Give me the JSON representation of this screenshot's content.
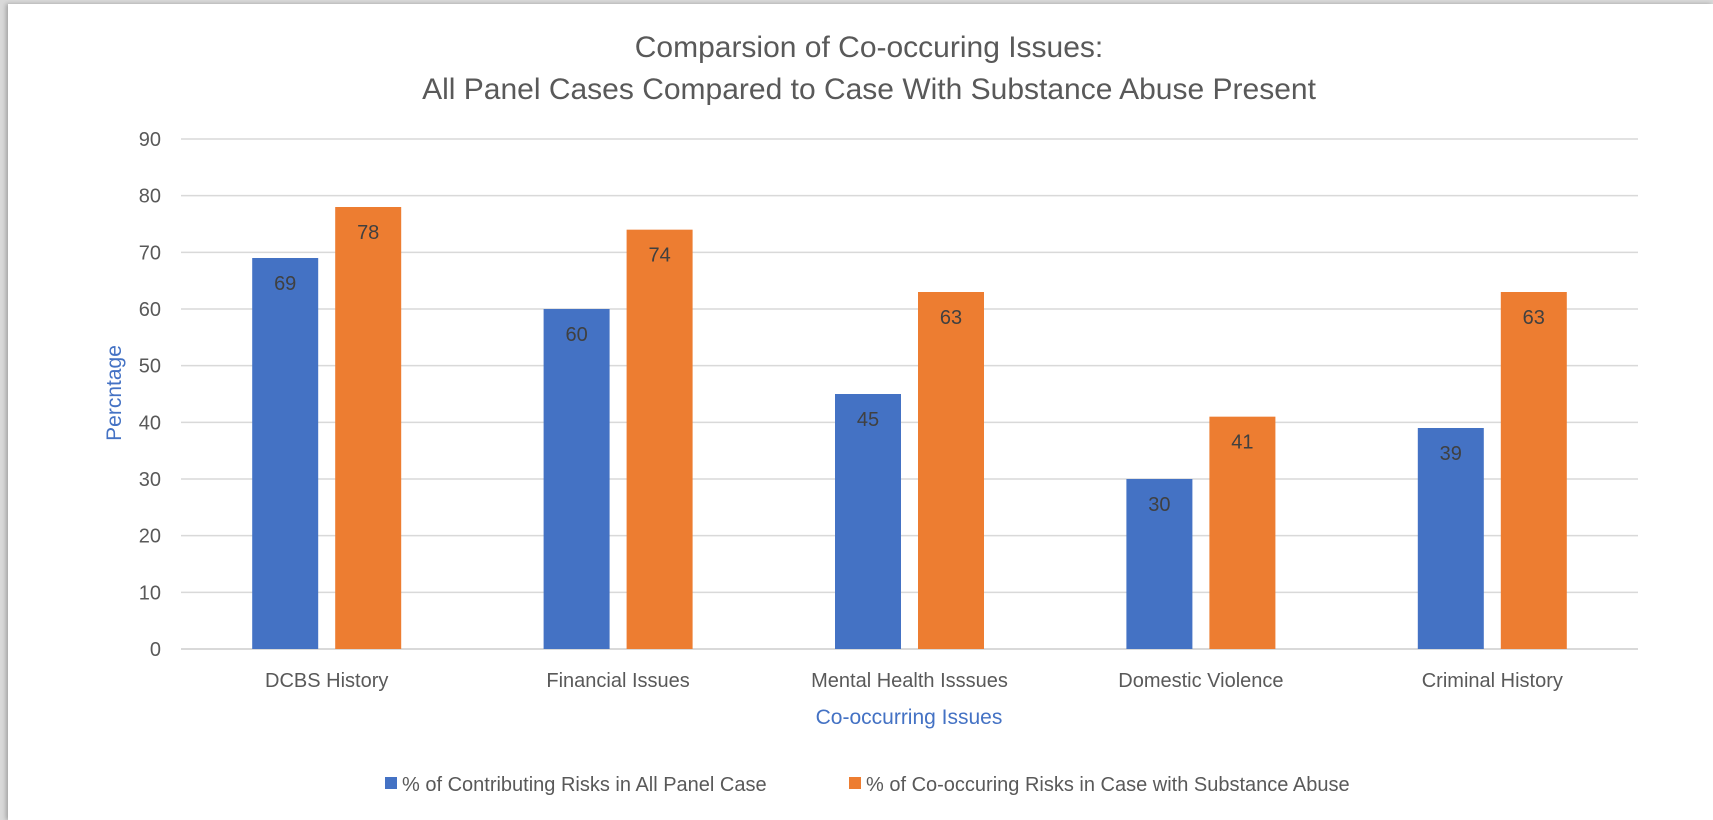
{
  "chart_data": {
    "type": "bar",
    "title": [
      "Comparsion of Co-occuring Issues:",
      "All Panel Cases Compared to Case With Substance Abuse Present"
    ],
    "xlabel": "Co-occurring Issues",
    "ylabel": "Percntage",
    "ylim": [
      0,
      90
    ],
    "yticks": [
      0,
      10,
      20,
      30,
      40,
      50,
      60,
      70,
      80,
      90
    ],
    "grid": true,
    "legend_position": "bottom",
    "categories": [
      "DCBS History",
      "Financial Issues",
      "Mental Health Isssues",
      "Domestic Violence",
      "Criminal History"
    ],
    "series": [
      {
        "name": "% of Contributing Risks in All Panel Case",
        "color": "#4472C4",
        "values": [
          69,
          60,
          45,
          30,
          39
        ]
      },
      {
        "name": "% of Co-occuring Risks in Case with Substance Abuse",
        "color": "#ED7D31",
        "values": [
          78,
          74,
          63,
          41,
          63
        ]
      }
    ]
  }
}
